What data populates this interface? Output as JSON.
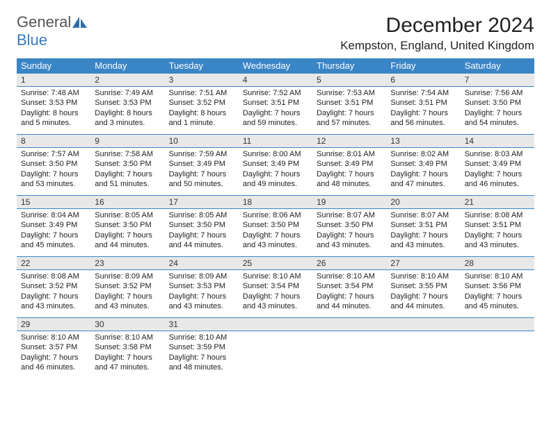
{
  "logo": {
    "text1": "General",
    "text2": "Blue",
    "color1": "#555555",
    "color2": "#3a7ab8",
    "icon_fill": "#2d6fa8"
  },
  "title": "December 2024",
  "location": "Kempston, England, United Kingdom",
  "header_bg": "#3a85c6",
  "header_fg": "#ffffff",
  "daynum_bg": "#e8e8e8",
  "rule_color": "#3a85c6",
  "body_fontsize": 11,
  "weekdays": [
    "Sunday",
    "Monday",
    "Tuesday",
    "Wednesday",
    "Thursday",
    "Friday",
    "Saturday"
  ],
  "days": [
    {
      "n": "1",
      "sunrise": "Sunrise: 7:48 AM",
      "sunset": "Sunset: 3:53 PM",
      "daylight": "Daylight: 8 hours and 5 minutes."
    },
    {
      "n": "2",
      "sunrise": "Sunrise: 7:49 AM",
      "sunset": "Sunset: 3:53 PM",
      "daylight": "Daylight: 8 hours and 3 minutes."
    },
    {
      "n": "3",
      "sunrise": "Sunrise: 7:51 AM",
      "sunset": "Sunset: 3:52 PM",
      "daylight": "Daylight: 8 hours and 1 minute."
    },
    {
      "n": "4",
      "sunrise": "Sunrise: 7:52 AM",
      "sunset": "Sunset: 3:51 PM",
      "daylight": "Daylight: 7 hours and 59 minutes."
    },
    {
      "n": "5",
      "sunrise": "Sunrise: 7:53 AM",
      "sunset": "Sunset: 3:51 PM",
      "daylight": "Daylight: 7 hours and 57 minutes."
    },
    {
      "n": "6",
      "sunrise": "Sunrise: 7:54 AM",
      "sunset": "Sunset: 3:51 PM",
      "daylight": "Daylight: 7 hours and 56 minutes."
    },
    {
      "n": "7",
      "sunrise": "Sunrise: 7:56 AM",
      "sunset": "Sunset: 3:50 PM",
      "daylight": "Daylight: 7 hours and 54 minutes."
    },
    {
      "n": "8",
      "sunrise": "Sunrise: 7:57 AM",
      "sunset": "Sunset: 3:50 PM",
      "daylight": "Daylight: 7 hours and 53 minutes."
    },
    {
      "n": "9",
      "sunrise": "Sunrise: 7:58 AM",
      "sunset": "Sunset: 3:50 PM",
      "daylight": "Daylight: 7 hours and 51 minutes."
    },
    {
      "n": "10",
      "sunrise": "Sunrise: 7:59 AM",
      "sunset": "Sunset: 3:49 PM",
      "daylight": "Daylight: 7 hours and 50 minutes."
    },
    {
      "n": "11",
      "sunrise": "Sunrise: 8:00 AM",
      "sunset": "Sunset: 3:49 PM",
      "daylight": "Daylight: 7 hours and 49 minutes."
    },
    {
      "n": "12",
      "sunrise": "Sunrise: 8:01 AM",
      "sunset": "Sunset: 3:49 PM",
      "daylight": "Daylight: 7 hours and 48 minutes."
    },
    {
      "n": "13",
      "sunrise": "Sunrise: 8:02 AM",
      "sunset": "Sunset: 3:49 PM",
      "daylight": "Daylight: 7 hours and 47 minutes."
    },
    {
      "n": "14",
      "sunrise": "Sunrise: 8:03 AM",
      "sunset": "Sunset: 3:49 PM",
      "daylight": "Daylight: 7 hours and 46 minutes."
    },
    {
      "n": "15",
      "sunrise": "Sunrise: 8:04 AM",
      "sunset": "Sunset: 3:49 PM",
      "daylight": "Daylight: 7 hours and 45 minutes."
    },
    {
      "n": "16",
      "sunrise": "Sunrise: 8:05 AM",
      "sunset": "Sunset: 3:50 PM",
      "daylight": "Daylight: 7 hours and 44 minutes."
    },
    {
      "n": "17",
      "sunrise": "Sunrise: 8:05 AM",
      "sunset": "Sunset: 3:50 PM",
      "daylight": "Daylight: 7 hours and 44 minutes."
    },
    {
      "n": "18",
      "sunrise": "Sunrise: 8:06 AM",
      "sunset": "Sunset: 3:50 PM",
      "daylight": "Daylight: 7 hours and 43 minutes."
    },
    {
      "n": "19",
      "sunrise": "Sunrise: 8:07 AM",
      "sunset": "Sunset: 3:50 PM",
      "daylight": "Daylight: 7 hours and 43 minutes."
    },
    {
      "n": "20",
      "sunrise": "Sunrise: 8:07 AM",
      "sunset": "Sunset: 3:51 PM",
      "daylight": "Daylight: 7 hours and 43 minutes."
    },
    {
      "n": "21",
      "sunrise": "Sunrise: 8:08 AM",
      "sunset": "Sunset: 3:51 PM",
      "daylight": "Daylight: 7 hours and 43 minutes."
    },
    {
      "n": "22",
      "sunrise": "Sunrise: 8:08 AM",
      "sunset": "Sunset: 3:52 PM",
      "daylight": "Daylight: 7 hours and 43 minutes."
    },
    {
      "n": "23",
      "sunrise": "Sunrise: 8:09 AM",
      "sunset": "Sunset: 3:52 PM",
      "daylight": "Daylight: 7 hours and 43 minutes."
    },
    {
      "n": "24",
      "sunrise": "Sunrise: 8:09 AM",
      "sunset": "Sunset: 3:53 PM",
      "daylight": "Daylight: 7 hours and 43 minutes."
    },
    {
      "n": "25",
      "sunrise": "Sunrise: 8:10 AM",
      "sunset": "Sunset: 3:54 PM",
      "daylight": "Daylight: 7 hours and 43 minutes."
    },
    {
      "n": "26",
      "sunrise": "Sunrise: 8:10 AM",
      "sunset": "Sunset: 3:54 PM",
      "daylight": "Daylight: 7 hours and 44 minutes."
    },
    {
      "n": "27",
      "sunrise": "Sunrise: 8:10 AM",
      "sunset": "Sunset: 3:55 PM",
      "daylight": "Daylight: 7 hours and 44 minutes."
    },
    {
      "n": "28",
      "sunrise": "Sunrise: 8:10 AM",
      "sunset": "Sunset: 3:56 PM",
      "daylight": "Daylight: 7 hours and 45 minutes."
    },
    {
      "n": "29",
      "sunrise": "Sunrise: 8:10 AM",
      "sunset": "Sunset: 3:57 PM",
      "daylight": "Daylight: 7 hours and 46 minutes."
    },
    {
      "n": "30",
      "sunrise": "Sunrise: 8:10 AM",
      "sunset": "Sunset: 3:58 PM",
      "daylight": "Daylight: 7 hours and 47 minutes."
    },
    {
      "n": "31",
      "sunrise": "Sunrise: 8:10 AM",
      "sunset": "Sunset: 3:59 PM",
      "daylight": "Daylight: 7 hours and 48 minutes."
    }
  ],
  "leading_blanks": 0,
  "trailing_blanks": 4
}
